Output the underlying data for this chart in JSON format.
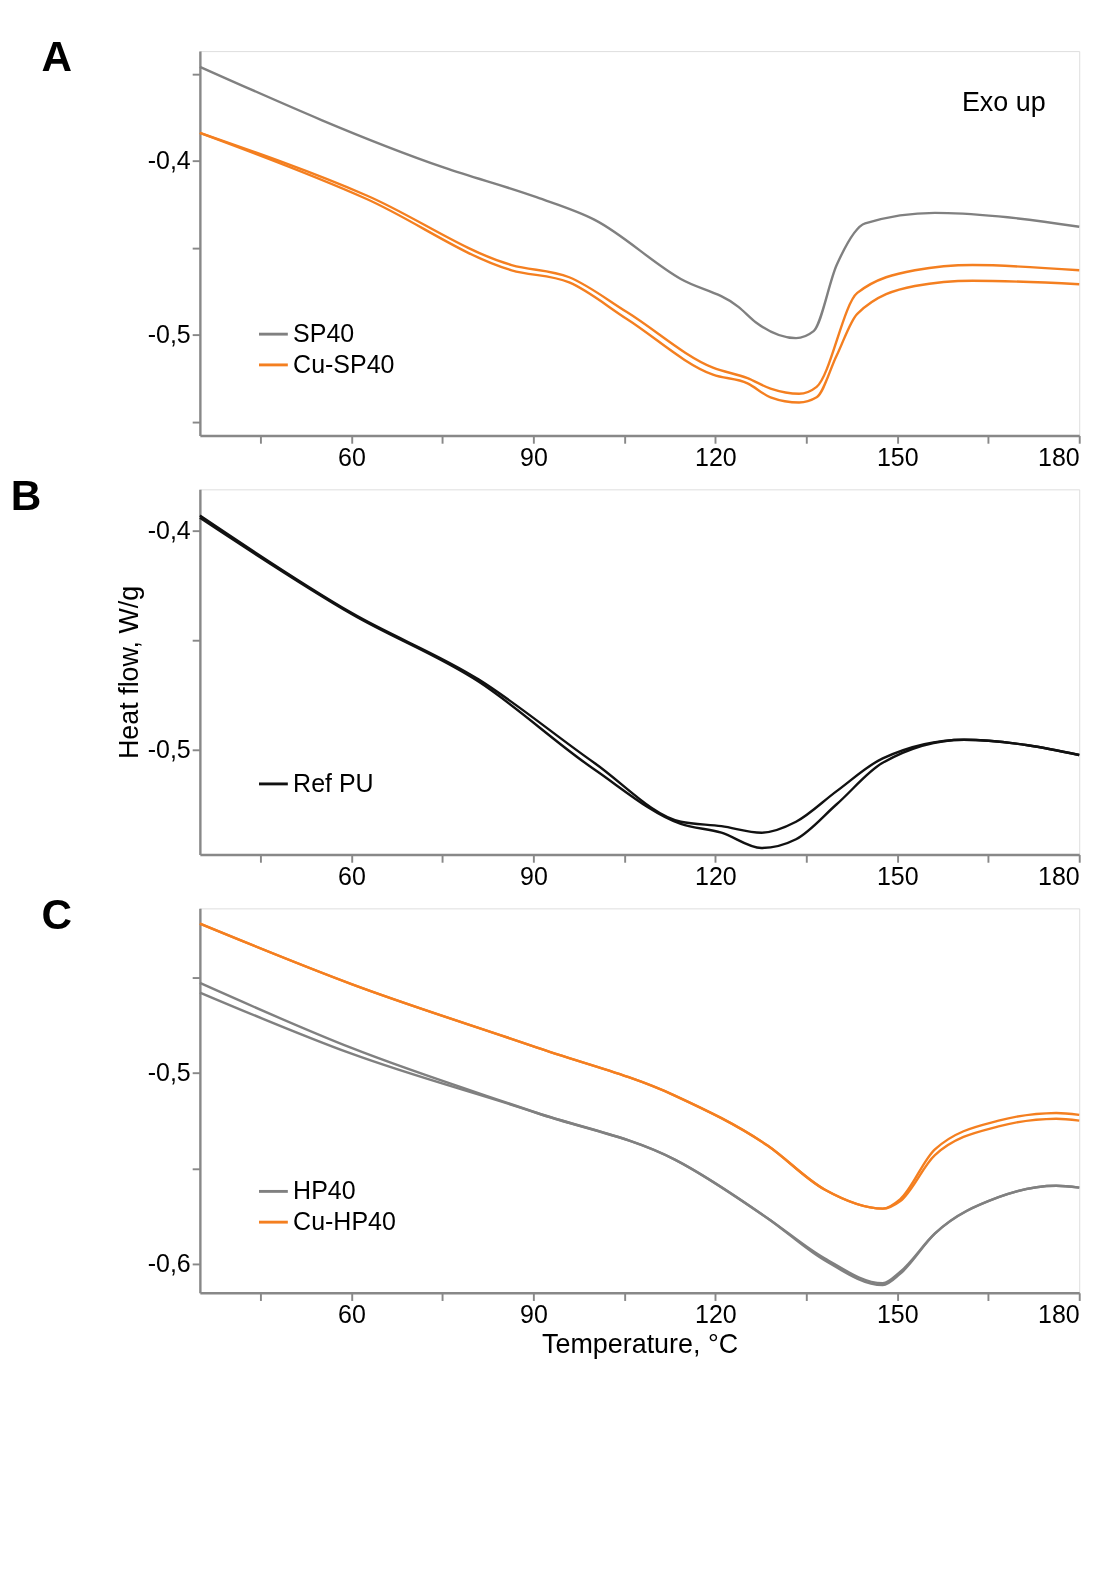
{
  "chart_data": [
    {
      "type": "line",
      "title": "A",
      "annotations": [
        "Exo up"
      ],
      "legend": "bottom left",
      "grid": false,
      "xlim": [
        35,
        180
      ],
      "xticks": [
        {
          "value": 45,
          "label": null
        },
        60,
        {
          "value": 75,
          "label": null
        },
        90,
        {
          "value": 105,
          "label": null
        },
        120,
        {
          "value": 135,
          "label": null
        },
        150,
        {
          "value": 165,
          "label": null
        },
        180
      ],
      "ylim": [
        -0.558,
        -0.337
      ],
      "yticks": [
        {
          "value": -0.35,
          "label": null
        },
        {
          "value": -0.4,
          "label": "-0,4"
        },
        {
          "value": -0.45,
          "label": null
        },
        {
          "value": -0.5,
          "label": "-0,5"
        },
        {
          "value": -0.55,
          "label": null
        }
      ],
      "series": [
        {
          "name": "SP40",
          "color": "#808080",
          "x": [
            35,
            75.3,
            90.5,
            100.1,
            114.3,
            123.8,
            126.7,
            133.3,
            136.2,
            140,
            144.7,
            156.2,
            166.7,
            180
          ],
          "values": [
            -0.346,
            -0.404,
            -0.421,
            -0.434,
            -0.468,
            -0.484,
            -0.493,
            -0.502,
            -0.498,
            -0.46,
            -0.436,
            -0.43,
            -0.432,
            -0.438
          ]
        },
        {
          "name": "Cu-SP40",
          "color": "#f47f20",
          "x": [
            35,
            62.5,
            86.4,
            95.9,
            105.4,
            119.6,
            125.3,
            129.1,
            133.8,
            136.7,
            143.4,
            152.9,
            162.4,
            180
          ],
          "values": [
            -0.384,
            -0.42,
            -0.46,
            -0.467,
            -0.487,
            -0.519,
            -0.525,
            -0.531,
            -0.534,
            -0.53,
            -0.476,
            -0.463,
            -0.46,
            -0.463
          ]
        },
        {
          "color": "#f47f20",
          "x": [
            35,
            62.5,
            86.4,
            95.9,
            105.4,
            119.6,
            125.3,
            129.1,
            133.8,
            136.7,
            140,
            143.4,
            152.9,
            162.4,
            180
          ],
          "values": [
            -0.384,
            -0.422,
            -0.463,
            -0.47,
            -0.491,
            -0.523,
            -0.528,
            -0.536,
            -0.539,
            -0.536,
            -0.512,
            -0.488,
            -0.472,
            -0.469,
            -0.471
          ]
        }
      ]
    },
    {
      "type": "line",
      "title": "B",
      "ylabel": "Heat flow, W/g",
      "legend": "bottom left",
      "grid": false,
      "xlim": [
        35,
        180
      ],
      "xticks": [
        {
          "value": 45,
          "label": null
        },
        60,
        {
          "value": 75,
          "label": null
        },
        90,
        {
          "value": 105,
          "label": null
        },
        120,
        {
          "value": 135,
          "label": null
        },
        150,
        {
          "value": 165,
          "label": null
        },
        180
      ],
      "ylim": [
        -0.548,
        -0.381
      ],
      "yticks": [
        {
          "value": -0.4,
          "label": "-0,4"
        },
        {
          "value": -0.45,
          "label": null
        },
        {
          "value": -0.5,
          "label": "-0,5"
        }
      ],
      "series": [
        {
          "name": "Ref PU",
          "color": "#111111",
          "x": [
            35,
            60,
            81,
            100,
            114.3,
            121,
            127.6,
            133.3,
            140,
            147.6,
            161,
            171.5,
            180
          ],
          "values": [
            -0.393,
            -0.4375,
            -0.468,
            -0.506,
            -0.533,
            -0.535,
            -0.538,
            -0.533,
            -0.519,
            -0.504,
            -0.4955,
            -0.498,
            -0.5025
          ]
        },
        {
          "color": "#111111",
          "x": [
            35,
            60,
            81,
            100,
            114.3,
            121,
            127.6,
            133.3,
            140,
            147.6,
            161,
            171.5,
            180
          ],
          "values": [
            -0.394,
            -0.438,
            -0.469,
            -0.509,
            -0.534,
            -0.538,
            -0.545,
            -0.541,
            -0.525,
            -0.506,
            -0.4955,
            -0.498,
            -0.5025
          ]
        }
      ]
    },
    {
      "type": "line",
      "title": "C",
      "xlabel": "Temperature, °C",
      "legend": "bottom left",
      "grid": false,
      "xlim": [
        35,
        180
      ],
      "xticks": [
        {
          "value": 45,
          "label": null
        },
        60,
        {
          "value": 75,
          "label": null
        },
        90,
        {
          "value": 105,
          "label": null
        },
        120,
        {
          "value": 135,
          "label": null
        },
        150,
        {
          "value": 165,
          "label": null
        },
        180
      ],
      "ylim": [
        -0.615,
        -0.414
      ],
      "yticks": [
        {
          "value": -0.45,
          "label": null
        },
        {
          "value": -0.5,
          "label": "-0,5"
        },
        {
          "value": -0.55,
          "label": null
        },
        {
          "value": -0.6,
          "label": "-0,6"
        }
      ],
      "series": [
        {
          "name": "HP40",
          "color": "#808080",
          "x": [
            35,
            60,
            90.6,
            113.4,
            128.6,
            138,
            147.6,
            150.5,
            156.2,
            166.7,
            176.2,
            180
          ],
          "values": [
            -0.453,
            -0.487,
            -0.521,
            -0.5455,
            -0.576,
            -0.597,
            -0.61,
            -0.604,
            -0.584,
            -0.565,
            -0.559,
            -0.56
          ]
        },
        {
          "color": "#808080",
          "x": [
            35,
            60,
            90.6,
            113.4,
            128.6,
            138,
            147.6,
            150.5,
            156.2,
            166.7,
            176.2,
            180
          ],
          "values": [
            -0.458,
            -0.49,
            -0.521,
            -0.5455,
            -0.576,
            -0.598,
            -0.611,
            -0.605,
            -0.584,
            -0.565,
            -0.559,
            -0.56
          ]
        },
        {
          "name": "Cu-HP40",
          "color": "#f47f20",
          "x": [
            35,
            60,
            90.6,
            113.4,
            128.6,
            138,
            147.6,
            150.5,
            156.2,
            166.7,
            176.2,
            180
          ],
          "values": [
            -0.422,
            -0.4536,
            -0.4868,
            -0.512,
            -0.538,
            -0.561,
            -0.571,
            -0.566,
            -0.54,
            -0.525,
            -0.521,
            -0.522
          ]
        },
        {
          "color": "#f47f20",
          "x": [
            35,
            60,
            90.6,
            113.4,
            128.6,
            138,
            147.6,
            150.5,
            156.2,
            166.7,
            176.2,
            180
          ],
          "values": [
            -0.422,
            -0.4536,
            -0.4868,
            -0.512,
            -0.538,
            -0.561,
            -0.571,
            -0.567,
            -0.543,
            -0.528,
            -0.524,
            -0.525
          ]
        }
      ]
    }
  ]
}
